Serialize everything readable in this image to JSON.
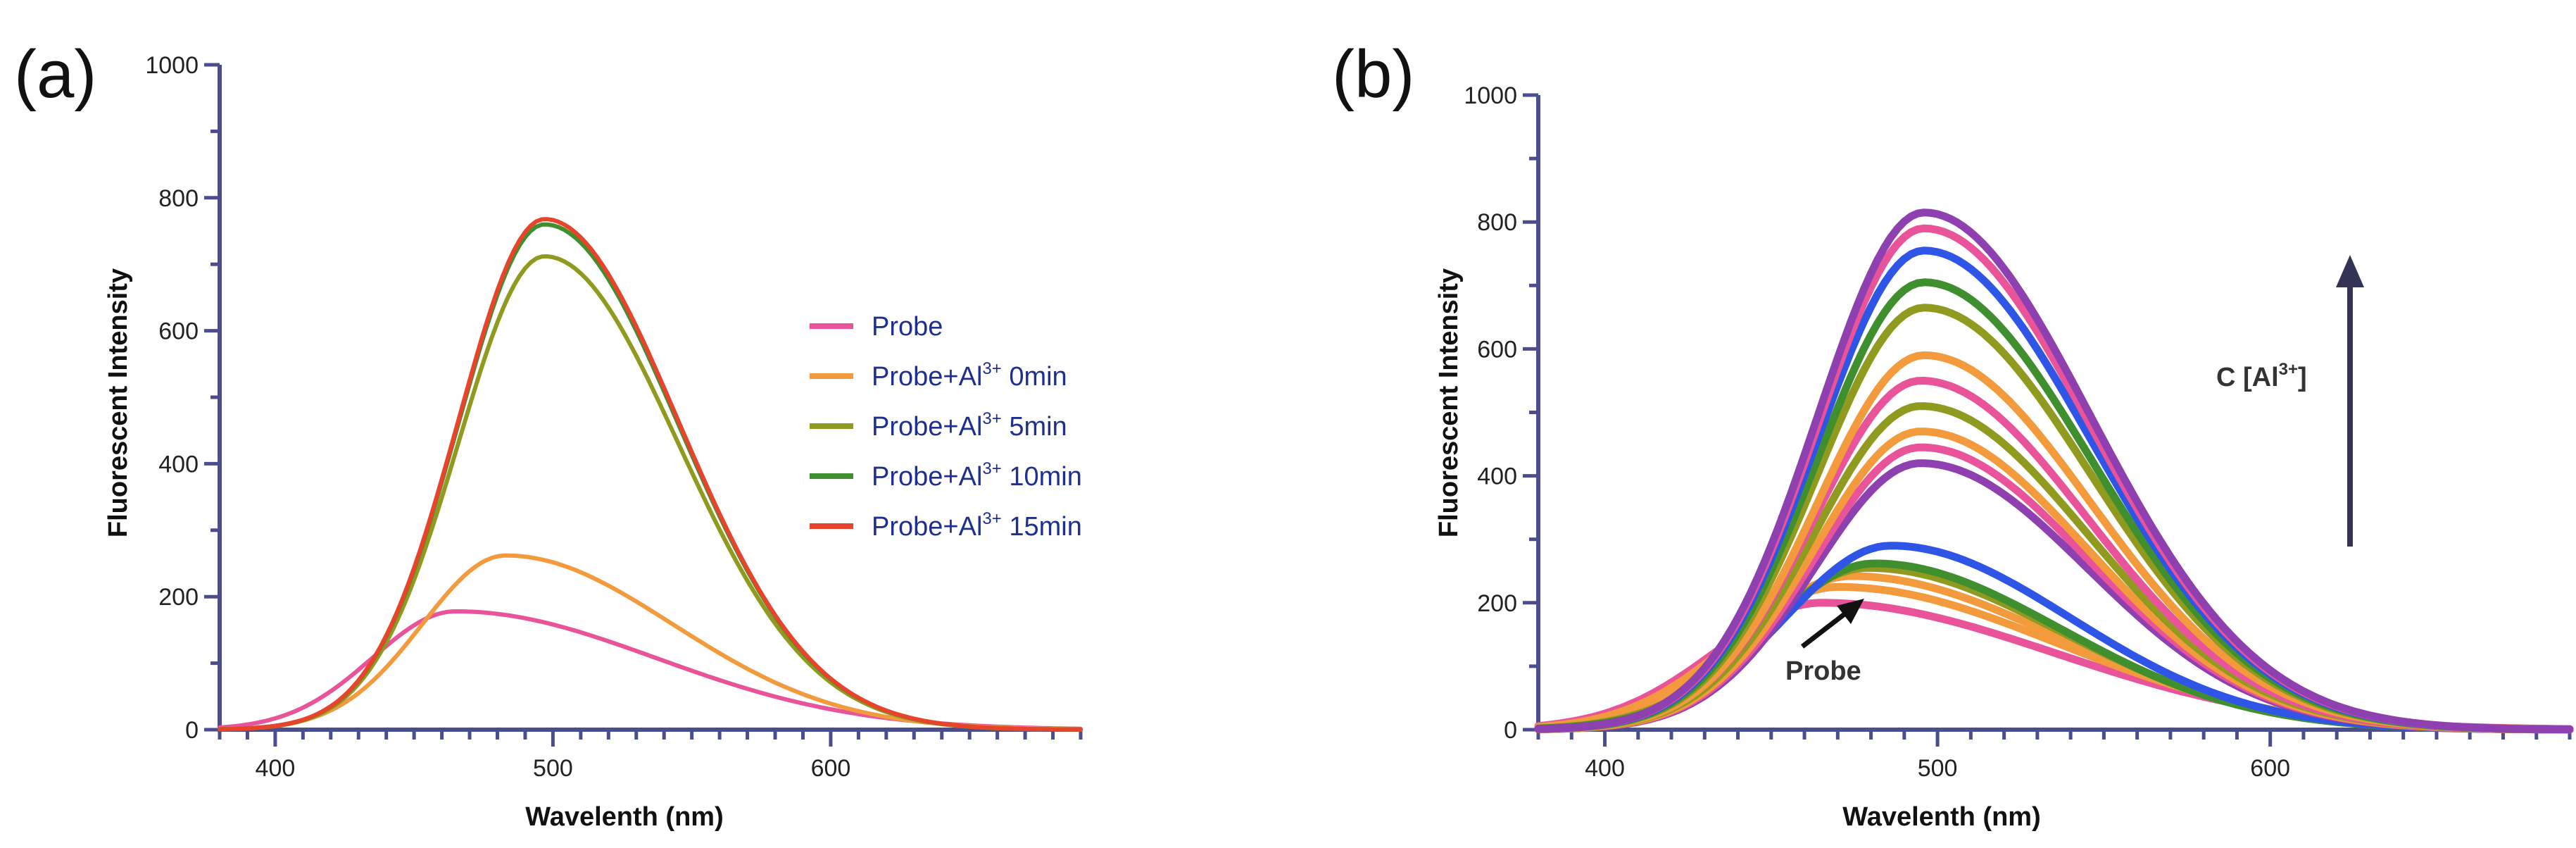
{
  "chart_data": [
    {
      "panel": "(a)",
      "type": "line",
      "xlabel": "Wavelenth (nm)",
      "ylabel": "Fluorescent Intensity",
      "xlim": [
        380,
        690
      ],
      "ylim": [
        0,
        1000
      ],
      "xticks": [
        400,
        500,
        600
      ],
      "yticks": [
        0,
        200,
        400,
        600,
        800,
        1000
      ],
      "legend_position": "right",
      "series": [
        {
          "name": "Probe",
          "label_main": "Probe",
          "label_sup": "",
          "label_tail": "",
          "color": "#e8539a",
          "peak_x": 465,
          "peak_y": 178,
          "sigma_left": 30,
          "sigma_right": 72
        },
        {
          "name": "Probe+Al3+ 0min",
          "label_main": "Probe+Al",
          "label_sup": "3+",
          "label_tail": " 0min",
          "color": "#f39a3c",
          "peak_x": 483,
          "peak_y": 262,
          "sigma_left": 30,
          "sigma_right": 60
        },
        {
          "name": "Probe+Al3+ 5min",
          "label_main": "Probe+Al",
          "label_sup": "3+",
          "label_tail": " 5min",
          "color": "#8f9a1e",
          "peak_x": 497,
          "peak_y": 712,
          "sigma_left": 31,
          "sigma_right": 48
        },
        {
          "name": "Probe+Al3+ 10min",
          "label_main": "Probe+Al",
          "label_sup": "3+",
          "label_tail": " 10min",
          "color": "#3f8f2f",
          "peak_x": 497,
          "peak_y": 760,
          "sigma_left": 31,
          "sigma_right": 48
        },
        {
          "name": "Probe+Al3+ 15min",
          "label_main": "Probe+Al",
          "label_sup": "3+",
          "label_tail": " 15min",
          "color": "#e8442c",
          "peak_x": 497,
          "peak_y": 768,
          "sigma_left": 31,
          "sigma_right": 48
        }
      ]
    },
    {
      "panel": "(b)",
      "type": "line",
      "xlabel": "Wavelenth (nm)",
      "ylabel": "Fluorescent Intensity",
      "xlim": [
        380,
        690
      ],
      "ylim": [
        0,
        1000
      ],
      "xticks": [
        400,
        500,
        600
      ],
      "yticks": [
        0,
        200,
        400,
        600,
        800,
        1000
      ],
      "annotation_probe": "Probe",
      "annotation_conc_main": "C [Al",
      "annotation_conc_sup": "3+",
      "annotation_conc_tail": "]",
      "series": [
        {
          "name": "probe",
          "color": "#e8539a",
          "peak_x": 465,
          "peak_y": 200,
          "sigma_left": 32,
          "sigma_right": 70
        },
        {
          "name": "c1",
          "color": "#f39a3c",
          "peak_x": 470,
          "peak_y": 225,
          "sigma_left": 32,
          "sigma_right": 66
        },
        {
          "name": "c2",
          "color": "#f39a3c",
          "peak_x": 474,
          "peak_y": 242,
          "sigma_left": 32,
          "sigma_right": 62
        },
        {
          "name": "c3",
          "color": "#8f9a1e",
          "peak_x": 479,
          "peak_y": 255,
          "sigma_left": 32,
          "sigma_right": 58
        },
        {
          "name": "c4",
          "color": "#3f8f2f",
          "peak_x": 481,
          "peak_y": 262,
          "sigma_left": 32,
          "sigma_right": 56
        },
        {
          "name": "c5",
          "color": "#2f55e6",
          "peak_x": 486,
          "peak_y": 290,
          "sigma_left": 32,
          "sigma_right": 54
        },
        {
          "name": "c6",
          "color": "#8e3fb0",
          "peak_x": 495,
          "peak_y": 420,
          "sigma_left": 32,
          "sigma_right": 50
        },
        {
          "name": "c7",
          "color": "#e8539a",
          "peak_x": 495,
          "peak_y": 445,
          "sigma_left": 32,
          "sigma_right": 50
        },
        {
          "name": "c8",
          "color": "#f39a3c",
          "peak_x": 495,
          "peak_y": 470,
          "sigma_left": 32,
          "sigma_right": 50
        },
        {
          "name": "c9",
          "color": "#8f9a1e",
          "peak_x": 495,
          "peak_y": 510,
          "sigma_left": 32,
          "sigma_right": 50
        },
        {
          "name": "c10",
          "color": "#e8539a",
          "peak_x": 495,
          "peak_y": 550,
          "sigma_left": 32,
          "sigma_right": 50
        },
        {
          "name": "c11",
          "color": "#f39a3c",
          "peak_x": 496,
          "peak_y": 590,
          "sigma_left": 32,
          "sigma_right": 50
        },
        {
          "name": "c12",
          "color": "#8f9a1e",
          "peak_x": 496,
          "peak_y": 665,
          "sigma_left": 32,
          "sigma_right": 50
        },
        {
          "name": "c13",
          "color": "#3f8f2f",
          "peak_x": 496,
          "peak_y": 705,
          "sigma_left": 32,
          "sigma_right": 50
        },
        {
          "name": "c14",
          "color": "#2f55e6",
          "peak_x": 496,
          "peak_y": 755,
          "sigma_left": 32,
          "sigma_right": 50
        },
        {
          "name": "c15",
          "color": "#e8539a",
          "peak_x": 496,
          "peak_y": 790,
          "sigma_left": 32,
          "sigma_right": 50
        },
        {
          "name": "c16",
          "color": "#8e3fb0",
          "peak_x": 496,
          "peak_y": 815,
          "sigma_left": 32,
          "sigma_right": 50
        }
      ]
    }
  ]
}
